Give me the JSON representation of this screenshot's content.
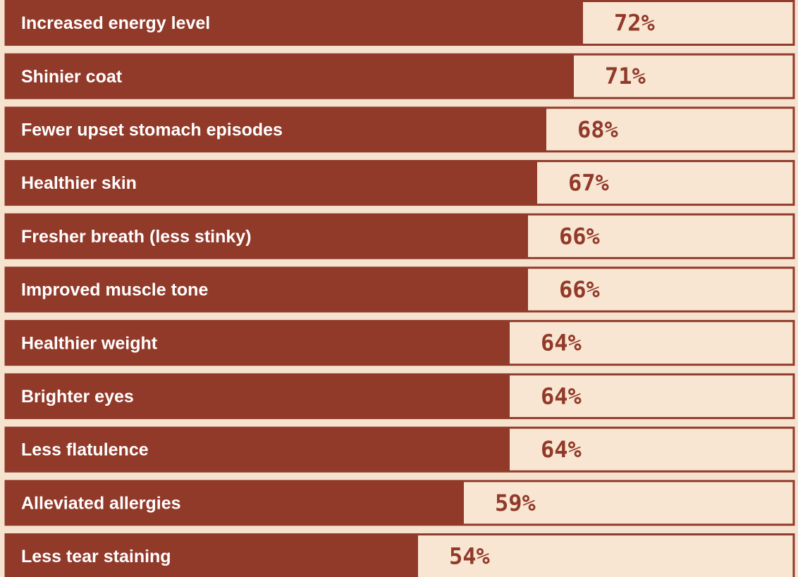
{
  "chart_data": {
    "type": "barh",
    "categories": [
      "Increased energy level",
      "Shinier coat",
      "Fewer upset stomach episodes",
      "Healthier skin",
      "Fresher breath (less stinky)",
      "Improved muscle tone",
      "Healthier weight",
      "Brighter eyes",
      "Less flatulence",
      "Alleviated allergies",
      "Less tear staining"
    ],
    "values": [
      72,
      71,
      68,
      67,
      66,
      66,
      64,
      64,
      64,
      59,
      54
    ],
    "value_labels": [
      "72%",
      "71%",
      "68%",
      "67%",
      "66%",
      "66%",
      "64%",
      "64%",
      "64%",
      "59%",
      "54%"
    ],
    "color": "#923a2a",
    "xlim": [
      9,
      95
    ]
  }
}
